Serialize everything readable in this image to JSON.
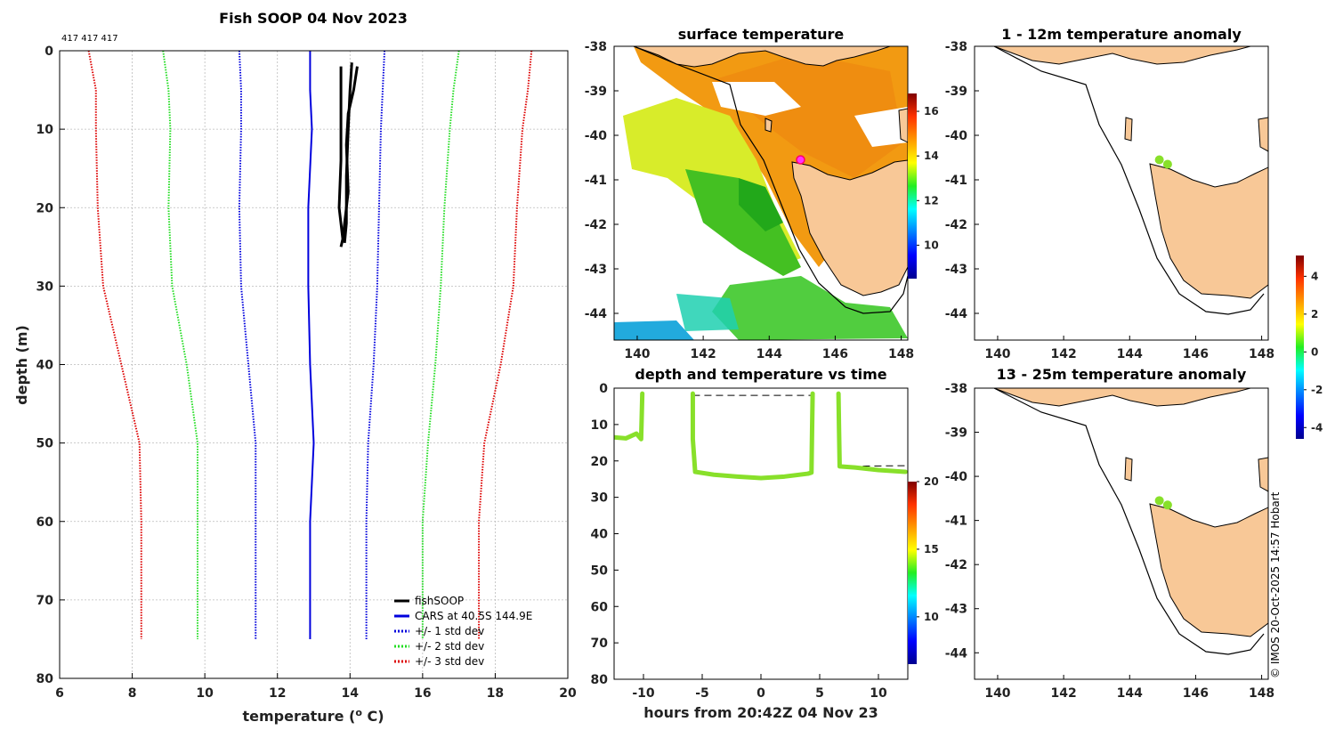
{
  "colors": {
    "land": "#f8c897",
    "fishsoop": "#000000",
    "cars": "#0000dd",
    "std1": "#0000dd",
    "std2": "#22dd22",
    "std3": "#dd0000",
    "track": "#88e02a"
  },
  "chart_data": [
    {
      "id": "profile",
      "type": "line",
      "title": "Fish SOOP 04 Nov 2023",
      "subtitle": "417 417 417",
      "xlabel": "temperature (",
      "xlabel_sup": "o",
      "xlabel_end": " C)",
      "ylabel": "depth (m)",
      "xlim": [
        6,
        20
      ],
      "ylim": [
        0,
        80
      ],
      "xticks": [
        "6",
        "8",
        "10",
        "12",
        "14",
        "16",
        "18",
        "20"
      ],
      "yticks": [
        "0",
        "10",
        "20",
        "30",
        "40",
        "50",
        "60",
        "70",
        "80"
      ],
      "legend": [
        "fishSOOP",
        "CARS at 40.5S 144.9E",
        "+/- 1 std dev",
        "+/- 2 std dev",
        "+/- 3 std dev"
      ],
      "depth": [
        0,
        5,
        10,
        20,
        30,
        40,
        50,
        60,
        75
      ],
      "cars_mean": [
        12.9,
        12.9,
        12.95,
        12.85,
        12.85,
        12.9,
        13.0,
        12.9,
        12.9
      ],
      "std1_low": [
        10.95,
        11.0,
        11.0,
        10.95,
        11.0,
        11.2,
        11.4,
        11.4,
        11.4
      ],
      "std1_high": [
        14.95,
        14.9,
        14.85,
        14.8,
        14.75,
        14.65,
        14.5,
        14.45,
        14.45
      ],
      "std2_low": [
        8.85,
        9.0,
        9.05,
        9.0,
        9.1,
        9.5,
        9.8,
        9.8,
        9.8
      ],
      "std2_high": [
        17.0,
        16.85,
        16.75,
        16.6,
        16.5,
        16.35,
        16.15,
        16.0,
        16.0
      ],
      "std3_low": [
        6.8,
        7.0,
        7.0,
        7.05,
        7.2,
        7.7,
        8.2,
        8.25,
        8.25
      ],
      "std3_high": [
        19.0,
        18.9,
        18.75,
        18.6,
        18.5,
        18.15,
        17.7,
        17.55,
        17.55
      ],
      "fishsoop_series": [
        {
          "temp": [
            13.75,
            13.75,
            13.75,
            13.7,
            13.8,
            13.75
          ],
          "depth": [
            2,
            8,
            14,
            20,
            24,
            25
          ]
        },
        {
          "temp": [
            14.05,
            14.0,
            13.95,
            13.9,
            13.9,
            13.85
          ],
          "depth": [
            1.5,
            5,
            10,
            16,
            22,
            24.5
          ]
        },
        {
          "temp": [
            14.2,
            14.1,
            13.95,
            13.9,
            13.95,
            13.8
          ],
          "depth": [
            2,
            5,
            8,
            12,
            18,
            24
          ]
        }
      ]
    },
    {
      "id": "sst",
      "type": "heatmap",
      "title": "surface temperature",
      "xticks": [
        "140",
        "142",
        "144",
        "146",
        "148"
      ],
      "yticks": [
        "-38",
        "-39",
        "-40",
        "-41",
        "-42",
        "-43",
        "-44"
      ],
      "xlim": [
        139.3,
        148.2
      ],
      "ylim": [
        -44.6,
        -38
      ],
      "colorbar_ticks": [
        "10",
        "12",
        "14",
        "16"
      ],
      "colorbar_range": [
        8.5,
        16.8
      ],
      "marker": {
        "lon": 144.95,
        "lat": -40.55
      }
    },
    {
      "id": "timeseries",
      "type": "scatter",
      "title": "depth and temperature vs time",
      "xlabel": "hours from 20:42Z 04 Nov 23",
      "xticks": [
        "-10",
        "-5",
        "0",
        "5",
        "10"
      ],
      "yticks": [
        "0",
        "10",
        "20",
        "30",
        "40",
        "50",
        "60",
        "70",
        "80"
      ],
      "xlim": [
        -12.5,
        12.5
      ],
      "ylim": [
        0,
        80
      ],
      "colorbar_ticks": [
        "10",
        "15",
        "20"
      ],
      "colorbar_range": [
        6.5,
        20
      ],
      "casts": [
        {
          "hours": [
            -12.5,
            -11.5,
            -10.6,
            -10.2,
            -10.15,
            -10.1
          ],
          "depth": [
            13.5,
            13.8,
            12.5,
            14.0,
            8,
            1.5
          ]
        },
        {
          "hours": [
            -5.8,
            -5.8,
            -5.6,
            -4,
            -2,
            0,
            2,
            4,
            4.3,
            4.35,
            4.4
          ],
          "depth": [
            1.5,
            14,
            23,
            23.8,
            24.3,
            24.7,
            24.3,
            23.5,
            23.2,
            12,
            1.5
          ]
        },
        {
          "hours": [
            6.6,
            6.65,
            6.7,
            8,
            10,
            12.3
          ],
          "depth": [
            1.5,
            12,
            21.5,
            21.8,
            22.5,
            23
          ]
        }
      ]
    },
    {
      "id": "anom1",
      "type": "heatmap",
      "title": "1 - 12m temperature anomaly",
      "xticks": [
        "140",
        "142",
        "144",
        "146",
        "148"
      ],
      "yticks": [
        "-38",
        "-39",
        "-40",
        "-41",
        "-42",
        "-43",
        "-44"
      ],
      "xlim": [
        139.3,
        148.2
      ],
      "ylim": [
        -44.6,
        -38
      ],
      "points": [
        {
          "lon": 144.9,
          "lat": -40.55
        },
        {
          "lon": 145.15,
          "lat": -40.65
        }
      ]
    },
    {
      "id": "anom2",
      "type": "heatmap",
      "title": "13 - 25m temperature anomaly",
      "xticks": [
        "140",
        "142",
        "144",
        "146",
        "148"
      ],
      "yticks": [
        "-38",
        "-39",
        "-40",
        "-41",
        "-42",
        "-43",
        "-44"
      ],
      "xlim": [
        139.3,
        148.2
      ],
      "ylim": [
        -44.6,
        -38
      ],
      "points": [
        {
          "lon": 144.9,
          "lat": -40.55
        },
        {
          "lon": 145.15,
          "lat": -40.65
        }
      ],
      "colorbar_ticks": [
        "-4",
        "-2",
        "0",
        "2",
        "4"
      ],
      "colorbar_range": [
        -4.6,
        5.1
      ]
    }
  ],
  "credit": "© IMOS 20-Oct-2025 14:57 Hobart"
}
